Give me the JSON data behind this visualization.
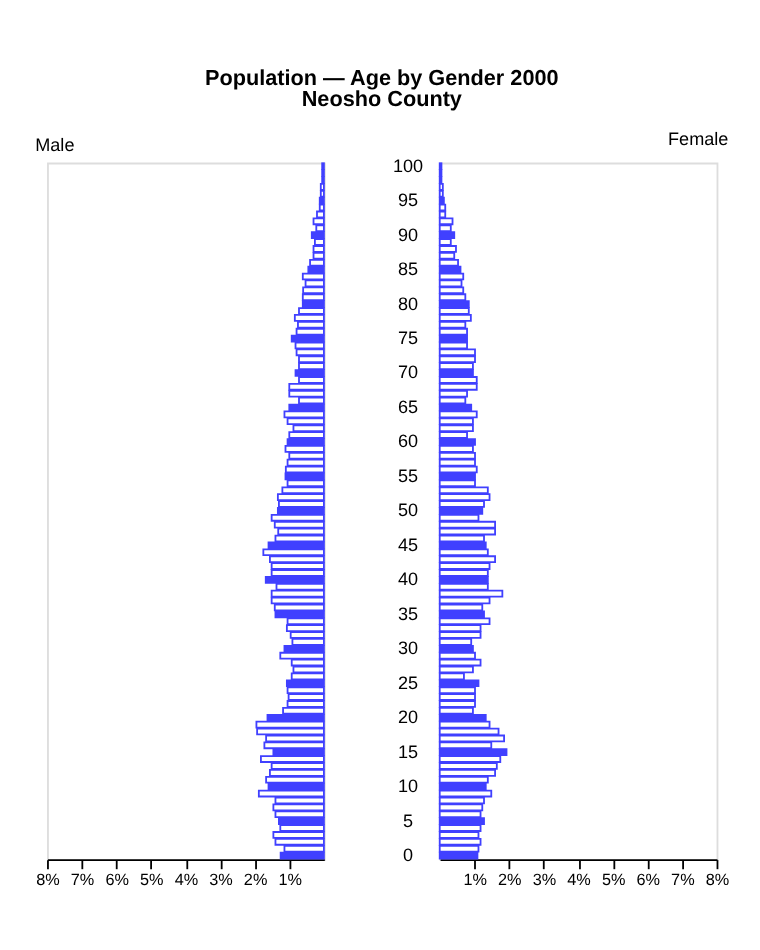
{
  "chart_data": [
    {
      "type": "bar",
      "orientation": "horizontal",
      "title": "Population — Age by Gender 2000",
      "subtitle": "Neosho County",
      "tick_labels": "x",
      "categories": [
        "100",
        null,
        null,
        null,
        null,
        "95",
        null,
        null,
        null,
        null,
        "90",
        null,
        null,
        null,
        null,
        "85",
        null,
        null,
        null,
        null,
        "80",
        null,
        null,
        null,
        null,
        "75",
        null,
        null,
        null,
        null,
        "70",
        null,
        null,
        null,
        null,
        "65",
        null,
        null,
        null,
        null,
        "60",
        null,
        null,
        null,
        null,
        "55",
        null,
        null,
        null,
        null,
        "50",
        null,
        null,
        null,
        null,
        "45",
        null,
        null,
        null,
        null,
        "40",
        null,
        null,
        null,
        null,
        "35",
        null,
        null,
        null,
        null,
        "30",
        null,
        null,
        null,
        null,
        "25",
        null,
        null,
        null,
        null,
        "20",
        null,
        null,
        null,
        null,
        "15",
        null,
        null,
        null,
        null,
        "10",
        null,
        null,
        null,
        null,
        "5",
        null,
        null,
        null,
        null,
        "0"
      ],
      "xlim": [
        8,
        0
      ],
      "xticks": [
        {
          "value": 8,
          "label": "8%"
        },
        {
          "value": 7,
          "label": "7%"
        },
        {
          "value": 6,
          "label": "6%"
        },
        {
          "value": 5,
          "label": "5%"
        },
        {
          "value": 4,
          "label": "4%"
        },
        {
          "value": 3,
          "label": "3%"
        },
        {
          "value": 2,
          "label": "2%"
        },
        {
          "value": 1,
          "label": "1%"
        }
      ],
      "series": [
        {
          "name": "Male",
          "color": "#4040ff",
          "values": [
            0.05,
            0.05,
            0.05,
            0.09,
            0.09,
            0.12,
            0.12,
            0.2,
            0.3,
            0.22,
            0.35,
            0.26,
            0.3,
            0.3,
            0.4,
            0.45,
            0.61,
            0.53,
            0.6,
            0.61,
            0.61,
            0.72,
            0.84,
            0.75,
            0.79,
            0.93,
            0.82,
            0.79,
            0.72,
            0.72,
            0.82,
            0.72,
            1.0,
            1.0,
            0.72,
            1.0,
            1.14,
            1.05,
            0.88,
            1.0,
            1.05,
            1.11,
            1.0,
            1.05,
            1.1,
            1.11,
            1.05,
            1.2,
            1.33,
            1.3,
            1.33,
            1.51,
            1.42,
            1.32,
            1.4,
            1.6,
            1.75,
            1.56,
            1.51,
            1.51,
            1.68,
            1.37,
            1.51,
            1.51,
            1.42,
            1.4,
            1.05,
            1.07,
            0.96,
            0.91,
            1.14,
            1.26,
            0.93,
            0.88,
            0.93,
            1.07,
            1.05,
            1.02,
            1.05,
            1.18,
            1.63,
            1.95,
            1.93,
            1.67,
            1.72,
            1.46,
            1.82,
            1.51,
            1.56,
            1.67,
            1.6,
            1.88,
            1.4,
            1.46,
            1.4,
            1.3,
            1.26,
            1.46,
            1.4,
            1.14,
            1.25
          ],
          "colors": [
            "#4040ff",
            "#ffffff",
            "#ffffff",
            "#ffffff",
            "#ffffff",
            "#4040ff",
            "#ffffff",
            "#ffffff",
            "#ffffff",
            "#ffffff",
            "#4040ff",
            "#ffffff",
            "#ffffff",
            "#ffffff",
            "#ffffff",
            "#4040ff",
            "#ffffff",
            "#ffffff",
            "#ffffff",
            "#ffffff",
            "#4040ff",
            "#ffffff",
            "#ffffff",
            "#ffffff",
            "#ffffff",
            "#4040ff",
            "#ffffff",
            "#ffffff",
            "#ffffff",
            "#ffffff",
            "#4040ff",
            "#ffffff",
            "#ffffff",
            "#ffffff",
            "#ffffff",
            "#4040ff",
            "#ffffff",
            "#ffffff",
            "#ffffff",
            "#ffffff",
            "#4040ff",
            "#ffffff",
            "#ffffff",
            "#ffffff",
            "#ffffff",
            "#4040ff",
            "#ffffff",
            "#ffffff",
            "#ffffff",
            "#ffffff",
            "#4040ff",
            "#ffffff",
            "#ffffff",
            "#ffffff",
            "#ffffff",
            "#4040ff",
            "#ffffff",
            "#ffffff",
            "#ffffff",
            "#ffffff",
            "#4040ff",
            "#ffffff",
            "#ffffff",
            "#ffffff",
            "#ffffff",
            "#4040ff",
            "#ffffff",
            "#ffffff",
            "#ffffff",
            "#ffffff",
            "#4040ff",
            "#ffffff",
            "#ffffff",
            "#ffffff",
            "#ffffff",
            "#4040ff",
            "#ffffff",
            "#ffffff",
            "#ffffff",
            "#ffffff",
            "#4040ff",
            "#ffffff",
            "#ffffff",
            "#ffffff",
            "#ffffff",
            "#4040ff",
            "#ffffff",
            "#ffffff",
            "#ffffff",
            "#ffffff",
            "#4040ff",
            "#ffffff",
            "#ffffff",
            "#ffffff",
            "#ffffff",
            "#4040ff",
            "#ffffff",
            "#ffffff",
            "#ffffff",
            "#ffffff",
            "#4040ff"
          ]
        }
      ]
    },
    {
      "type": "bar",
      "orientation": "horizontal",
      "categories": [
        "100",
        null,
        null,
        null,
        null,
        "95",
        null,
        null,
        null,
        null,
        "90",
        null,
        null,
        null,
        null,
        "85",
        null,
        null,
        null,
        null,
        "80",
        null,
        null,
        null,
        null,
        "75",
        null,
        null,
        null,
        null,
        "70",
        null,
        null,
        null,
        null,
        "65",
        null,
        null,
        null,
        null,
        "60",
        null,
        null,
        null,
        null,
        "55",
        null,
        null,
        null,
        null,
        "50",
        null,
        null,
        null,
        null,
        "45",
        null,
        null,
        null,
        null,
        "40",
        null,
        null,
        null,
        null,
        "35",
        null,
        null,
        null,
        null,
        "30",
        null,
        null,
        null,
        null,
        "25",
        null,
        null,
        null,
        null,
        "20",
        null,
        null,
        null,
        null,
        "15",
        null,
        null,
        null,
        null,
        "10",
        null,
        null,
        null,
        null,
        "5",
        null,
        null,
        null,
        null,
        "0"
      ],
      "xlim": [
        0,
        8
      ],
      "xticks": [
        {
          "value": 1,
          "label": "1%"
        },
        {
          "value": 2,
          "label": "2%"
        },
        {
          "value": 3,
          "label": "3%"
        },
        {
          "value": 4,
          "label": "4%"
        },
        {
          "value": 5,
          "label": "5%"
        },
        {
          "value": 6,
          "label": "6%"
        },
        {
          "value": 7,
          "label": "7%"
        },
        {
          "value": 8,
          "label": "8%"
        }
      ],
      "series": [
        {
          "name": "Female",
          "color": "#4040ff",
          "values": [
            0.05,
            0.05,
            0.05,
            0.09,
            0.09,
            0.12,
            0.16,
            0.16,
            0.37,
            0.32,
            0.42,
            0.32,
            0.47,
            0.42,
            0.53,
            0.6,
            0.68,
            0.63,
            0.68,
            0.74,
            0.84,
            0.84,
            0.9,
            0.74,
            0.79,
            0.79,
            0.79,
            1.02,
            1.02,
            0.96,
            0.96,
            1.07,
            1.07,
            0.79,
            0.74,
            0.91,
            1.07,
            0.96,
            0.96,
            0.79,
            1.02,
            0.96,
            1.02,
            1.02,
            1.07,
            1.02,
            1.02,
            1.39,
            1.44,
            1.28,
            1.23,
            1.12,
            1.6,
            1.6,
            1.28,
            1.33,
            1.39,
            1.6,
            1.44,
            1.39,
            1.39,
            1.39,
            1.81,
            1.44,
            1.23,
            1.28,
            1.44,
            1.18,
            1.18,
            0.91,
            0.96,
            1.02,
            1.18,
            0.96,
            0.7,
            1.12,
            1.02,
            1.02,
            1.02,
            0.96,
            1.33,
            1.44,
            1.7,
            1.86,
            1.49,
            1.93,
            1.75,
            1.65,
            1.6,
            1.39,
            1.33,
            1.49,
            1.28,
            1.23,
            1.18,
            1.28,
            1.18,
            1.12,
            1.18,
            1.12,
            1.09
          ],
          "colors": [
            "#4040ff",
            "#ffffff",
            "#ffffff",
            "#ffffff",
            "#ffffff",
            "#4040ff",
            "#ffffff",
            "#ffffff",
            "#ffffff",
            "#ffffff",
            "#4040ff",
            "#ffffff",
            "#ffffff",
            "#ffffff",
            "#ffffff",
            "#4040ff",
            "#ffffff",
            "#ffffff",
            "#ffffff",
            "#ffffff",
            "#4040ff",
            "#ffffff",
            "#ffffff",
            "#ffffff",
            "#ffffff",
            "#4040ff",
            "#ffffff",
            "#ffffff",
            "#ffffff",
            "#ffffff",
            "#4040ff",
            "#ffffff",
            "#ffffff",
            "#ffffff",
            "#ffffff",
            "#4040ff",
            "#ffffff",
            "#ffffff",
            "#ffffff",
            "#ffffff",
            "#4040ff",
            "#ffffff",
            "#ffffff",
            "#ffffff",
            "#ffffff",
            "#4040ff",
            "#ffffff",
            "#ffffff",
            "#ffffff",
            "#ffffff",
            "#4040ff",
            "#ffffff",
            "#ffffff",
            "#ffffff",
            "#ffffff",
            "#4040ff",
            "#ffffff",
            "#ffffff",
            "#ffffff",
            "#ffffff",
            "#4040ff",
            "#ffffff",
            "#ffffff",
            "#ffffff",
            "#ffffff",
            "#4040ff",
            "#ffffff",
            "#ffffff",
            "#ffffff",
            "#ffffff",
            "#4040ff",
            "#ffffff",
            "#ffffff",
            "#ffffff",
            "#ffffff",
            "#4040ff",
            "#ffffff",
            "#ffffff",
            "#ffffff",
            "#ffffff",
            "#4040ff",
            "#ffffff",
            "#ffffff",
            "#ffffff",
            "#ffffff",
            "#4040ff",
            "#ffffff",
            "#ffffff",
            "#ffffff",
            "#ffffff",
            "#4040ff",
            "#ffffff",
            "#ffffff",
            "#ffffff",
            "#ffffff",
            "#4040ff",
            "#ffffff",
            "#ffffff",
            "#ffffff",
            "#ffffff",
            "#4040ff"
          ]
        }
      ]
    }
  ]
}
